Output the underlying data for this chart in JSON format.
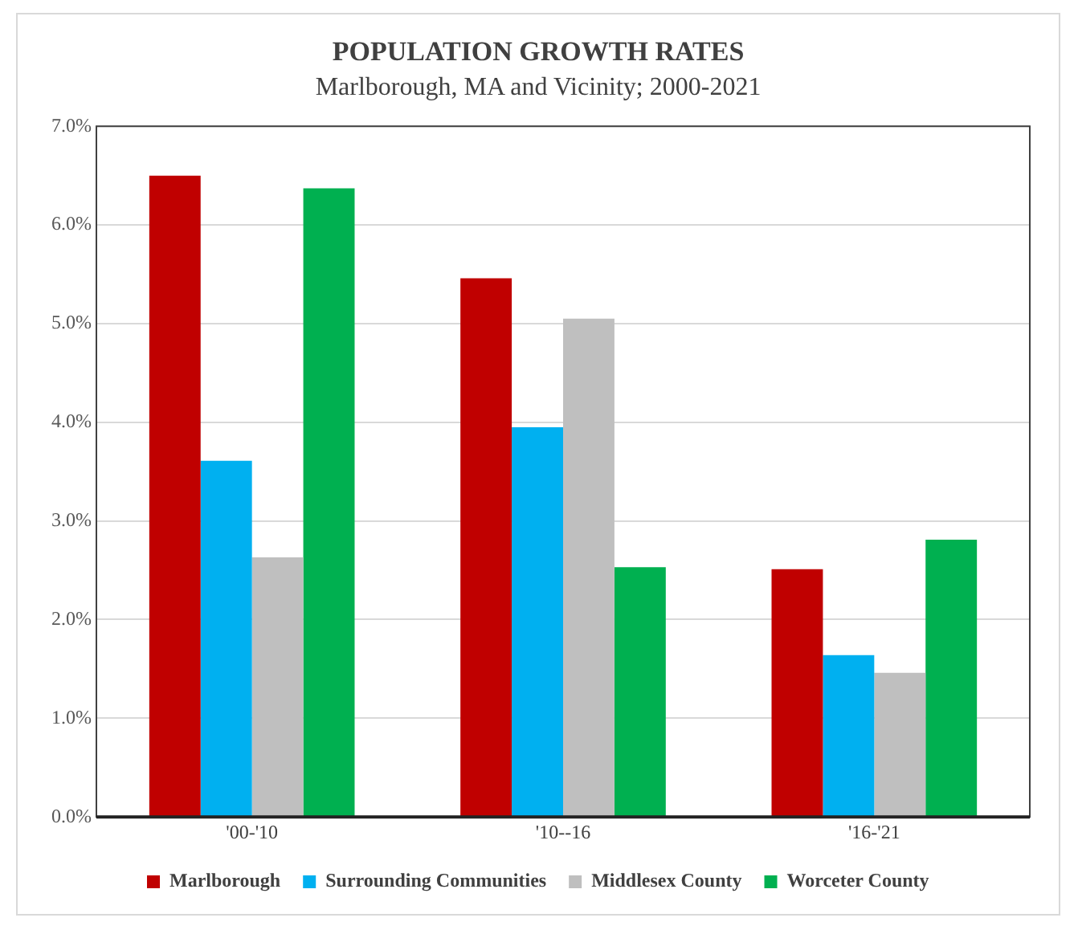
{
  "chart_data": {
    "type": "bar",
    "title": "POPULATION GROWTH RATES",
    "subtitle": "Marlborough, MA and Vicinity; 2000-2021",
    "categories": [
      "'00-'10",
      "'10--16",
      "'16-'21"
    ],
    "series": [
      {
        "name": "Marlborough",
        "color": "#c00000",
        "values": [
          6.5,
          5.46,
          2.51
        ]
      },
      {
        "name": "Surrounding Communities",
        "color": "#00b0f0",
        "values": [
          3.61,
          3.95,
          1.64
        ]
      },
      {
        "name": "Middlesex County",
        "color": "#bfbfbf",
        "values": [
          2.63,
          5.05,
          1.46
        ]
      },
      {
        "name": "Worceter County",
        "color": "#00b050",
        "values": [
          6.37,
          2.53,
          2.81
        ]
      }
    ],
    "ylim": [
      0,
      7
    ],
    "yticks": [
      {
        "value": 0,
        "label": "0.0%"
      },
      {
        "value": 1,
        "label": "1.0%"
      },
      {
        "value": 2,
        "label": "2.0%"
      },
      {
        "value": 3,
        "label": "3.0%"
      },
      {
        "value": 4,
        "label": "4.0%"
      },
      {
        "value": 5,
        "label": "5.0%"
      },
      {
        "value": 6,
        "label": "6.0%"
      },
      {
        "value": 7,
        "label": "7.0%"
      }
    ],
    "grid": "y",
    "legend": "bottom"
  }
}
